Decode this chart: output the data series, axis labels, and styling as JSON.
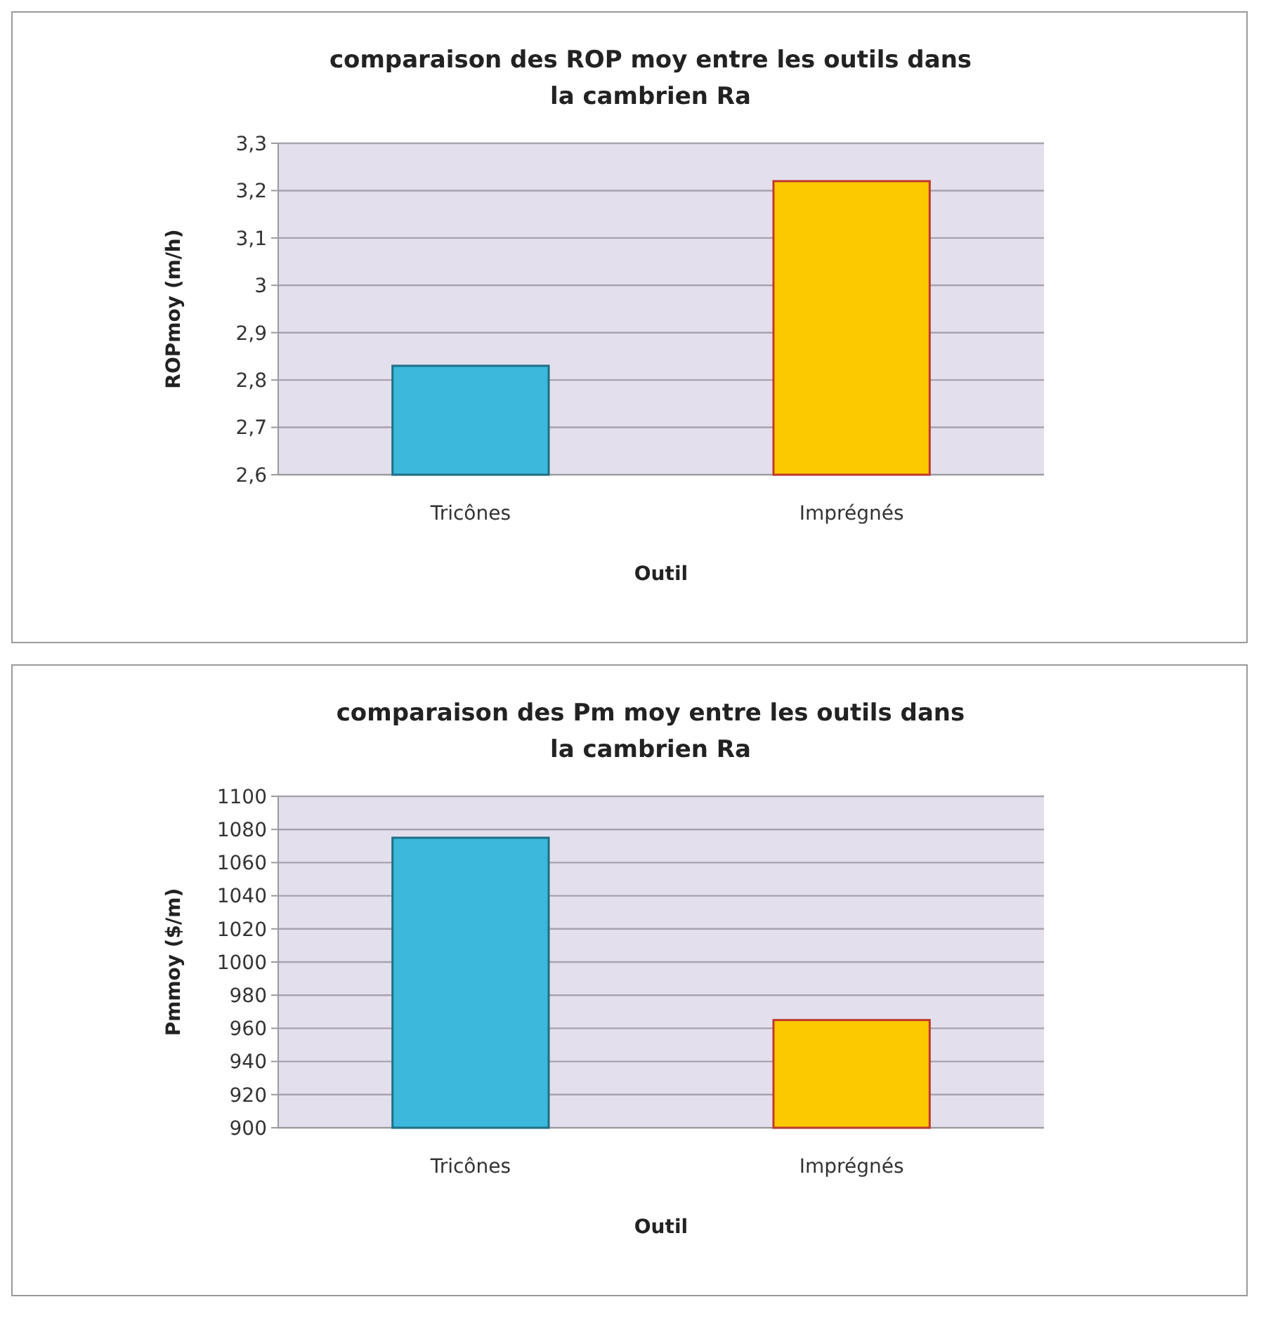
{
  "chart_data": [
    {
      "type": "bar",
      "title": "comparaison des ROP moy entre les outils dans la cambrien Ra",
      "xlabel": "Outil",
      "ylabel": "ROPmoy (m/h)",
      "categories": [
        "Tricônes",
        "Imprégnés"
      ],
      "values": [
        2.83,
        3.22
      ],
      "colors": [
        "#3cb8dc",
        "#fcc800"
      ],
      "ylim": [
        2.6,
        3.3
      ],
      "yticks": [
        {
          "value": 2.6,
          "label": "2,6"
        },
        {
          "value": 2.7,
          "label": "2,7"
        },
        {
          "value": 2.8,
          "label": "2,8"
        },
        {
          "value": 2.9,
          "label": "2,9"
        },
        3,
        {
          "value": 3.1,
          "label": "3,1"
        },
        {
          "value": 3.2,
          "label": "3,2"
        },
        {
          "value": 3.3,
          "label": "3,3"
        }
      ],
      "grid": "y"
    },
    {
      "type": "bar",
      "title": "comparaison des Pm moy entre les outils dans la cambrien Ra",
      "xlabel": "Outil",
      "ylabel": "Pmmoy ($/m)",
      "categories": [
        "Tricônes",
        "Imprégnés"
      ],
      "values": [
        1075,
        965
      ],
      "colors": [
        "#3cb8dc",
        "#fcc800"
      ],
      "ylim": [
        900,
        1100
      ],
      "yticks": [
        900,
        920,
        940,
        960,
        980,
        1000,
        1020,
        1040,
        1060,
        1080,
        1100
      ],
      "grid": "y"
    }
  ]
}
